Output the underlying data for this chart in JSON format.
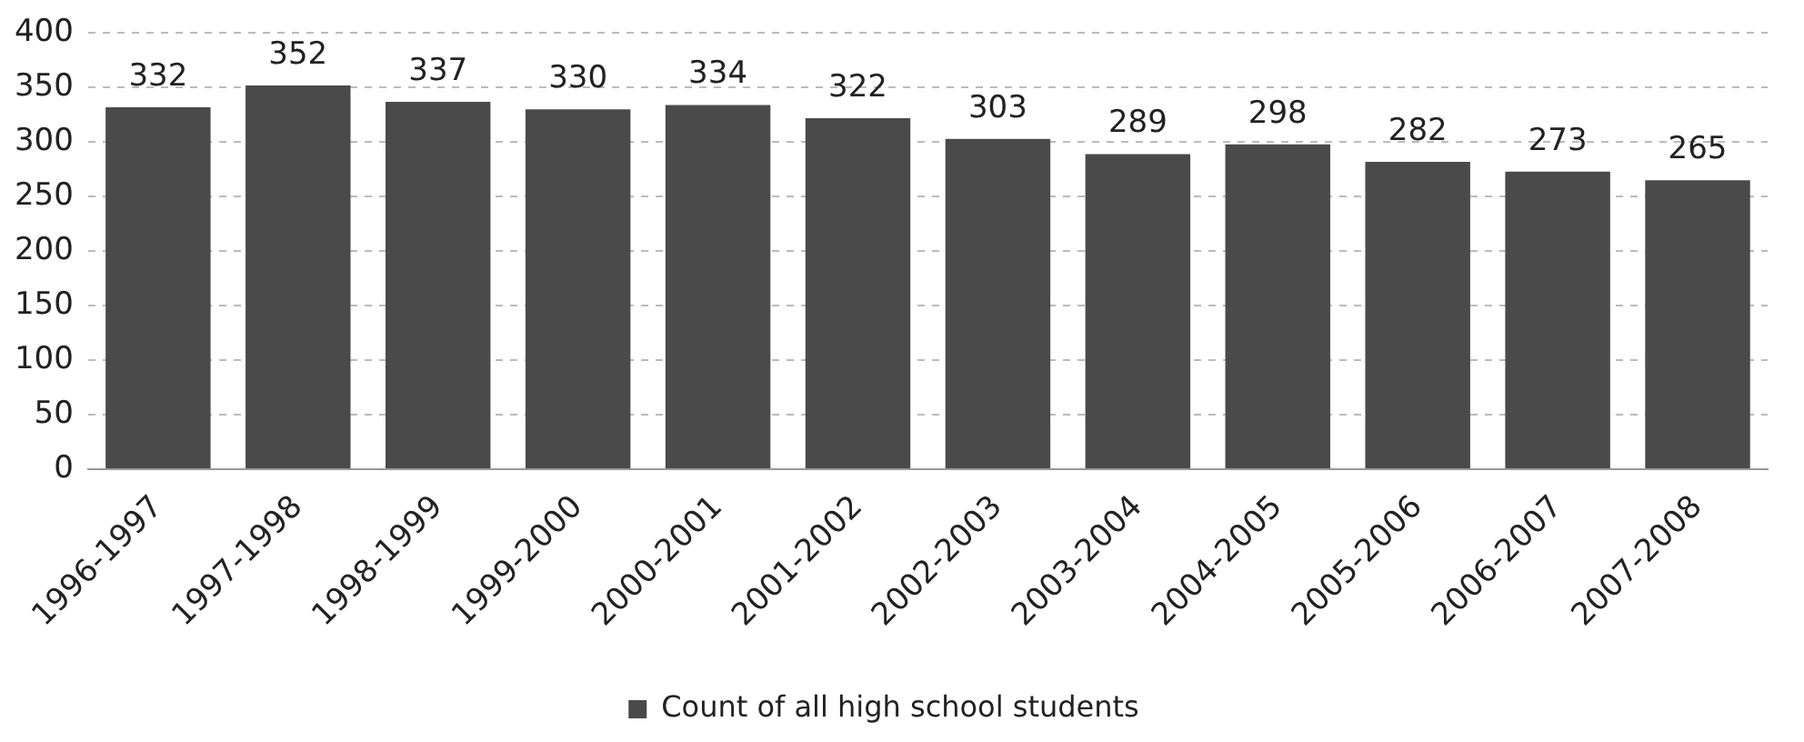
{
  "chart_data": {
    "type": "bar",
    "categories": [
      "1996-1997",
      "1997-1998",
      "1998-1999",
      "1999-2000",
      "2000-2001",
      "2001-2002",
      "2002-2003",
      "2003-2004",
      "2004-2005",
      "2005-2006",
      "2006-2007",
      "2007-2008"
    ],
    "series": [
      {
        "name": "Count of all high school students",
        "color": "#4a4a4a",
        "values": [
          332,
          352,
          337,
          330,
          334,
          322,
          303,
          289,
          298,
          282,
          273,
          265
        ]
      }
    ],
    "ylim": [
      0,
      400
    ],
    "yticks": [
      0,
      50,
      100,
      150,
      200,
      250,
      300,
      350,
      400
    ],
    "grid": "y",
    "legend": "bottom",
    "data_labels": true
  }
}
